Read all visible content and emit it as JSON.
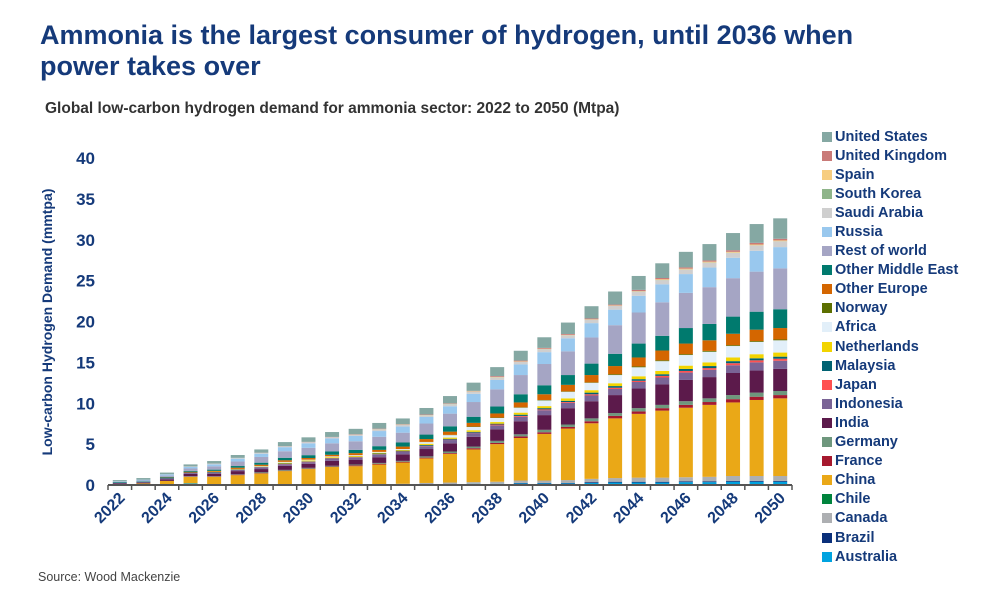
{
  "title": "Ammonia is the largest consumer of hydrogen, until 2036 when power takes over",
  "subtitle": "Global low-carbon hydrogen demand for ammonia sector: 2022 to 2050 (Mtpa)",
  "source": "Source: Wood Mackenzie",
  "chart_data": {
    "type": "bar",
    "stacked": true,
    "ylabel": "Low-carbon Hydrogen Demand (mmtpa)",
    "ylim": [
      0,
      40
    ],
    "yticks": [
      "0",
      "5",
      "10",
      "15",
      "20",
      "25",
      "30",
      "35",
      "40"
    ],
    "xtick_labels": [
      "2022",
      "2024",
      "2026",
      "2028",
      "2030",
      "2032",
      "2034",
      "2036",
      "2038",
      "2040",
      "2042",
      "2044",
      "2046",
      "2048",
      "2050"
    ],
    "legend_position": "right",
    "categories": [
      "2022",
      "2023",
      "2024",
      "2025",
      "2026",
      "2027",
      "2028",
      "2029",
      "2030",
      "2031",
      "2032",
      "2033",
      "2034",
      "2035",
      "2036",
      "2037",
      "2038",
      "2039",
      "2040",
      "2041",
      "2042",
      "2043",
      "2044",
      "2045",
      "2046",
      "2047",
      "2048",
      "2049",
      "2050"
    ],
    "series": [
      {
        "name": "Australia",
        "color": "#00a3e0",
        "values": [
          0,
          0,
          0,
          0.2,
          0,
          0,
          0,
          0,
          0,
          0,
          0,
          0,
          0.05,
          0.1,
          0.1,
          0.15,
          0.15,
          0.2,
          0.2,
          0.2,
          0.25,
          0.3,
          0.3,
          0.3,
          0.35,
          0.35,
          0.4,
          0.4,
          0.4
        ]
      },
      {
        "name": "Brazil",
        "color": "#0a2f7a",
        "values": [
          0,
          0,
          0,
          0,
          0,
          0,
          0,
          0,
          0,
          0,
          0,
          0,
          0,
          0,
          0,
          0,
          0,
          0.05,
          0.05,
          0.05,
          0.1,
          0.1,
          0.1,
          0.1,
          0.1,
          0.1,
          0.1,
          0.1,
          0.1
        ]
      },
      {
        "name": "Canada",
        "color": "#adafb2",
        "values": [
          0,
          0,
          0,
          0,
          0,
          0,
          0,
          0,
          0.05,
          0.1,
          0.1,
          0.1,
          0.1,
          0.15,
          0.2,
          0.2,
          0.25,
          0.3,
          0.3,
          0.35,
          0.4,
          0.45,
          0.5,
          0.5,
          0.5,
          0.55,
          0.6,
          0.6,
          0.6
        ]
      },
      {
        "name": "Chile",
        "color": "#00843d",
        "values": [
          0,
          0,
          0,
          0,
          0,
          0,
          0,
          0,
          0,
          0,
          0,
          0,
          0,
          0,
          0,
          0,
          0,
          0,
          0,
          0,
          0,
          0,
          0,
          0,
          0,
          0,
          0,
          0,
          0
        ]
      },
      {
        "name": "China",
        "color": "#eaa817",
        "values": [
          0.1,
          0.2,
          0.5,
          0.8,
          1.0,
          1.2,
          1.4,
          1.7,
          1.9,
          2.1,
          2.2,
          2.4,
          2.6,
          3.0,
          3.5,
          4.0,
          4.6,
          5.2,
          5.7,
          6.3,
          6.8,
          7.3,
          7.8,
          8.2,
          8.5,
          8.8,
          9.0,
          9.3,
          9.5
        ]
      },
      {
        "name": "France",
        "color": "#a6192e",
        "values": [
          0,
          0,
          0,
          0.02,
          0.03,
          0.05,
          0.05,
          0.05,
          0.05,
          0.05,
          0.1,
          0.1,
          0.1,
          0.1,
          0.1,
          0.15,
          0.15,
          0.2,
          0.2,
          0.2,
          0.25,
          0.3,
          0.3,
          0.3,
          0.35,
          0.35,
          0.4,
          0.4,
          0.4
        ]
      },
      {
        "name": "Germany",
        "color": "#6e977d",
        "values": [
          0,
          0,
          0,
          0.05,
          0.05,
          0.05,
          0.1,
          0.1,
          0.1,
          0.1,
          0.1,
          0.1,
          0.1,
          0.15,
          0.2,
          0.2,
          0.25,
          0.25,
          0.3,
          0.3,
          0.35,
          0.35,
          0.4,
          0.4,
          0.45,
          0.45,
          0.5,
          0.5,
          0.5
        ]
      },
      {
        "name": "India",
        "color": "#5c1a4b",
        "values": [
          0.1,
          0.1,
          0.2,
          0.3,
          0.3,
          0.4,
          0.4,
          0.5,
          0.5,
          0.6,
          0.6,
          0.7,
          0.8,
          0.9,
          1.0,
          1.2,
          1.4,
          1.6,
          1.8,
          2.0,
          2.1,
          2.2,
          2.4,
          2.5,
          2.6,
          2.6,
          2.7,
          2.7,
          2.7
        ]
      },
      {
        "name": "Indonesia",
        "color": "#7a6496",
        "values": [
          0.05,
          0.05,
          0.1,
          0.1,
          0.15,
          0.15,
          0.2,
          0.2,
          0.2,
          0.25,
          0.25,
          0.3,
          0.3,
          0.35,
          0.4,
          0.45,
          0.5,
          0.55,
          0.6,
          0.65,
          0.7,
          0.75,
          0.8,
          0.85,
          0.9,
          0.9,
          0.95,
          1.0,
          1.0
        ]
      },
      {
        "name": "Japan",
        "color": "#ff5050",
        "values": [
          0,
          0,
          0,
          0,
          0,
          0.02,
          0.03,
          0.03,
          0.05,
          0.05,
          0.05,
          0.05,
          0.05,
          0.05,
          0.05,
          0.05,
          0.1,
          0.1,
          0.1,
          0.1,
          0.15,
          0.15,
          0.15,
          0.2,
          0.2,
          0.2,
          0.25,
          0.25,
          0.25
        ]
      },
      {
        "name": "Malaysia",
        "color": "#006272",
        "values": [
          0.05,
          0.05,
          0.05,
          0.05,
          0.05,
          0.05,
          0.05,
          0.05,
          0.05,
          0.05,
          0.05,
          0.1,
          0.1,
          0.1,
          0.1,
          0.1,
          0.1,
          0.15,
          0.15,
          0.15,
          0.2,
          0.2,
          0.2,
          0.2,
          0.25,
          0.25,
          0.25,
          0.25,
          0.25
        ]
      },
      {
        "name": "Netherlands",
        "color": "#f2d400",
        "values": [
          0,
          0,
          0,
          0,
          0.05,
          0.05,
          0.05,
          0.1,
          0.1,
          0.1,
          0.1,
          0.1,
          0.1,
          0.15,
          0.15,
          0.2,
          0.2,
          0.25,
          0.25,
          0.3,
          0.3,
          0.35,
          0.35,
          0.4,
          0.4,
          0.45,
          0.45,
          0.5,
          0.5
        ]
      },
      {
        "name": "Africa",
        "color": "#e2eff9",
        "values": [
          0,
          0,
          0,
          0,
          0,
          0,
          0.05,
          0.1,
          0.1,
          0.1,
          0.1,
          0.1,
          0.1,
          0.2,
          0.3,
          0.4,
          0.5,
          0.6,
          0.7,
          0.8,
          0.9,
          1.0,
          1.1,
          1.2,
          1.3,
          1.3,
          1.4,
          1.5,
          1.5
        ]
      },
      {
        "name": "Norway",
        "color": "#5c6f00",
        "values": [
          0,
          0,
          0,
          0,
          0,
          0,
          0,
          0,
          0,
          0,
          0,
          0,
          0,
          0.02,
          0.03,
          0.05,
          0.05,
          0.05,
          0.05,
          0.05,
          0.05,
          0.1,
          0.1,
          0.1,
          0.1,
          0.1,
          0.1,
          0.1,
          0.1
        ]
      },
      {
        "name": "Other Europe",
        "color": "#d46600",
        "values": [
          0,
          0,
          0.05,
          0.1,
          0.1,
          0.15,
          0.15,
          0.2,
          0.2,
          0.2,
          0.25,
          0.25,
          0.3,
          0.35,
          0.4,
          0.45,
          0.5,
          0.6,
          0.7,
          0.8,
          0.9,
          1.0,
          1.1,
          1.2,
          1.3,
          1.3,
          1.4,
          1.4,
          1.4
        ]
      },
      {
        "name": "Other Middle East",
        "color": "#007a6e",
        "values": [
          0.05,
          0.05,
          0.1,
          0.1,
          0.15,
          0.2,
          0.25,
          0.3,
          0.35,
          0.4,
          0.4,
          0.45,
          0.5,
          0.55,
          0.65,
          0.75,
          0.85,
          1.0,
          1.1,
          1.2,
          1.4,
          1.5,
          1.7,
          1.8,
          1.9,
          2.0,
          2.1,
          2.2,
          2.3
        ]
      },
      {
        "name": "Rest of world",
        "color": "#a5a5c4",
        "values": [
          0.05,
          0.1,
          0.15,
          0.3,
          0.4,
          0.55,
          0.7,
          0.8,
          0.9,
          1.0,
          1.05,
          1.15,
          1.2,
          1.35,
          1.55,
          1.8,
          2.1,
          2.35,
          2.6,
          2.9,
          3.2,
          3.5,
          3.8,
          4.1,
          4.3,
          4.5,
          4.7,
          4.9,
          5.0
        ]
      },
      {
        "name": "Russia",
        "color": "#99c8ee",
        "values": [
          0.05,
          0.1,
          0.15,
          0.2,
          0.25,
          0.35,
          0.4,
          0.5,
          0.55,
          0.6,
          0.65,
          0.7,
          0.75,
          0.8,
          0.9,
          1.0,
          1.15,
          1.3,
          1.45,
          1.6,
          1.75,
          1.9,
          2.05,
          2.2,
          2.3,
          2.4,
          2.5,
          2.55,
          2.6
        ]
      },
      {
        "name": "Saudi Arabia",
        "color": "#cfcfcf",
        "values": [
          0,
          0,
          0.02,
          0.05,
          0.1,
          0.1,
          0.1,
          0.1,
          0.15,
          0.15,
          0.15,
          0.2,
          0.2,
          0.2,
          0.25,
          0.25,
          0.3,
          0.3,
          0.35,
          0.35,
          0.4,
          0.45,
          0.5,
          0.5,
          0.55,
          0.6,
          0.6,
          0.65,
          0.7
        ]
      },
      {
        "name": "South Korea",
        "color": "#8fb58a",
        "values": [
          0,
          0,
          0,
          0,
          0,
          0,
          0,
          0,
          0,
          0,
          0.02,
          0.02,
          0.02,
          0.02,
          0.02,
          0.02,
          0.02,
          0.02,
          0.02,
          0.02,
          0.02,
          0.02,
          0.02,
          0.02,
          0.02,
          0.02,
          0.02,
          0.02,
          0.02
        ]
      },
      {
        "name": "Spain",
        "color": "#f7cd80",
        "values": [
          0,
          0,
          0,
          0,
          0,
          0,
          0,
          0,
          0,
          0,
          0,
          0.02,
          0.02,
          0.03,
          0.03,
          0.05,
          0.05,
          0.05,
          0.05,
          0.05,
          0.05,
          0.05,
          0.05,
          0.1,
          0.1,
          0.1,
          0.1,
          0.1,
          0.1
        ]
      },
      {
        "name": "United Kingdom",
        "color": "#c97a78",
        "values": [
          0,
          0,
          0,
          0,
          0,
          0,
          0.02,
          0.02,
          0.03,
          0.03,
          0.05,
          0.05,
          0.05,
          0.05,
          0.05,
          0.05,
          0.1,
          0.1,
          0.1,
          0.1,
          0.1,
          0.1,
          0.15,
          0.15,
          0.15,
          0.15,
          0.2,
          0.2,
          0.2
        ]
      },
      {
        "name": "United States",
        "color": "#85a8a3",
        "values": [
          0.15,
          0.2,
          0.2,
          0.25,
          0.3,
          0.35,
          0.4,
          0.5,
          0.55,
          0.6,
          0.65,
          0.7,
          0.7,
          0.8,
          0.9,
          1.0,
          1.1,
          1.2,
          1.3,
          1.4,
          1.5,
          1.6,
          1.7,
          1.8,
          1.9,
          2.0,
          2.1,
          2.3,
          2.5
        ]
      }
    ]
  }
}
